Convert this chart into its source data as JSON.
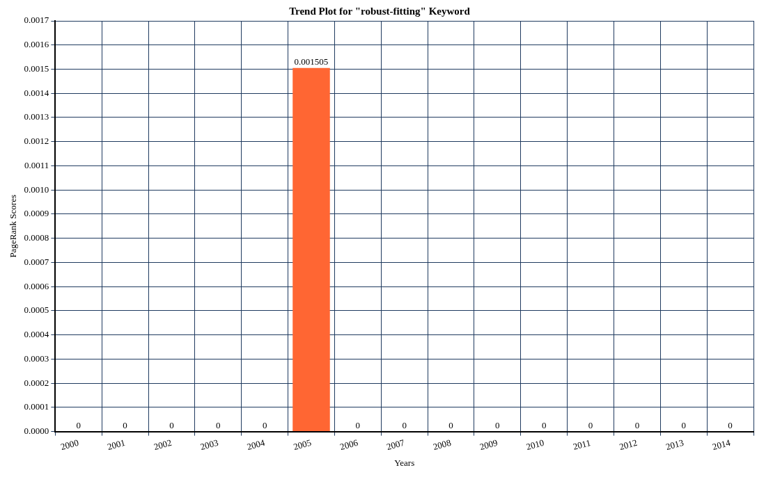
{
  "chart_data": {
    "type": "bar",
    "title": "Trend Plot for \"robust-fitting\" Keyword",
    "xlabel": "Years",
    "ylabel": "PageRank Scores",
    "categories": [
      "2000",
      "2001",
      "2002",
      "2003",
      "2004",
      "2005",
      "2006",
      "2007",
      "2008",
      "2009",
      "2010",
      "2011",
      "2012",
      "2013",
      "2014"
    ],
    "values": [
      0,
      0,
      0,
      0,
      0,
      0.001505,
      0,
      0,
      0,
      0,
      0,
      0,
      0,
      0,
      0
    ],
    "color": "#ff6633",
    "data_labels": true,
    "grid": true,
    "legend": false,
    "ylim": [
      0,
      0.0017
    ],
    "yticks": [
      {
        "value": 0,
        "label": "0.0000"
      },
      {
        "value": 0.0001,
        "label": "0.0001"
      },
      {
        "value": 0.0002,
        "label": "0.0002"
      },
      {
        "value": 0.0003,
        "label": "0.0003"
      },
      {
        "value": 0.0004,
        "label": "0.0004"
      },
      {
        "value": 0.0005,
        "label": "0.0005"
      },
      {
        "value": 0.0006,
        "label": "0.0006"
      },
      {
        "value": 0.0007,
        "label": "0.0007"
      },
      {
        "value": 0.0008,
        "label": "0.0008"
      },
      {
        "value": 0.0009,
        "label": "0.0009"
      },
      {
        "value": 0.001,
        "label": "0.0010"
      },
      {
        "value": 0.0011,
        "label": "0.0011"
      },
      {
        "value": 0.0012,
        "label": "0.0012"
      },
      {
        "value": 0.0013,
        "label": "0.0013"
      },
      {
        "value": 0.0014,
        "label": "0.0014"
      },
      {
        "value": 0.0015,
        "label": "0.0015"
      },
      {
        "value": 0.0016,
        "label": "0.0016"
      },
      {
        "value": 0.0017,
        "label": "0.0017"
      }
    ]
  }
}
